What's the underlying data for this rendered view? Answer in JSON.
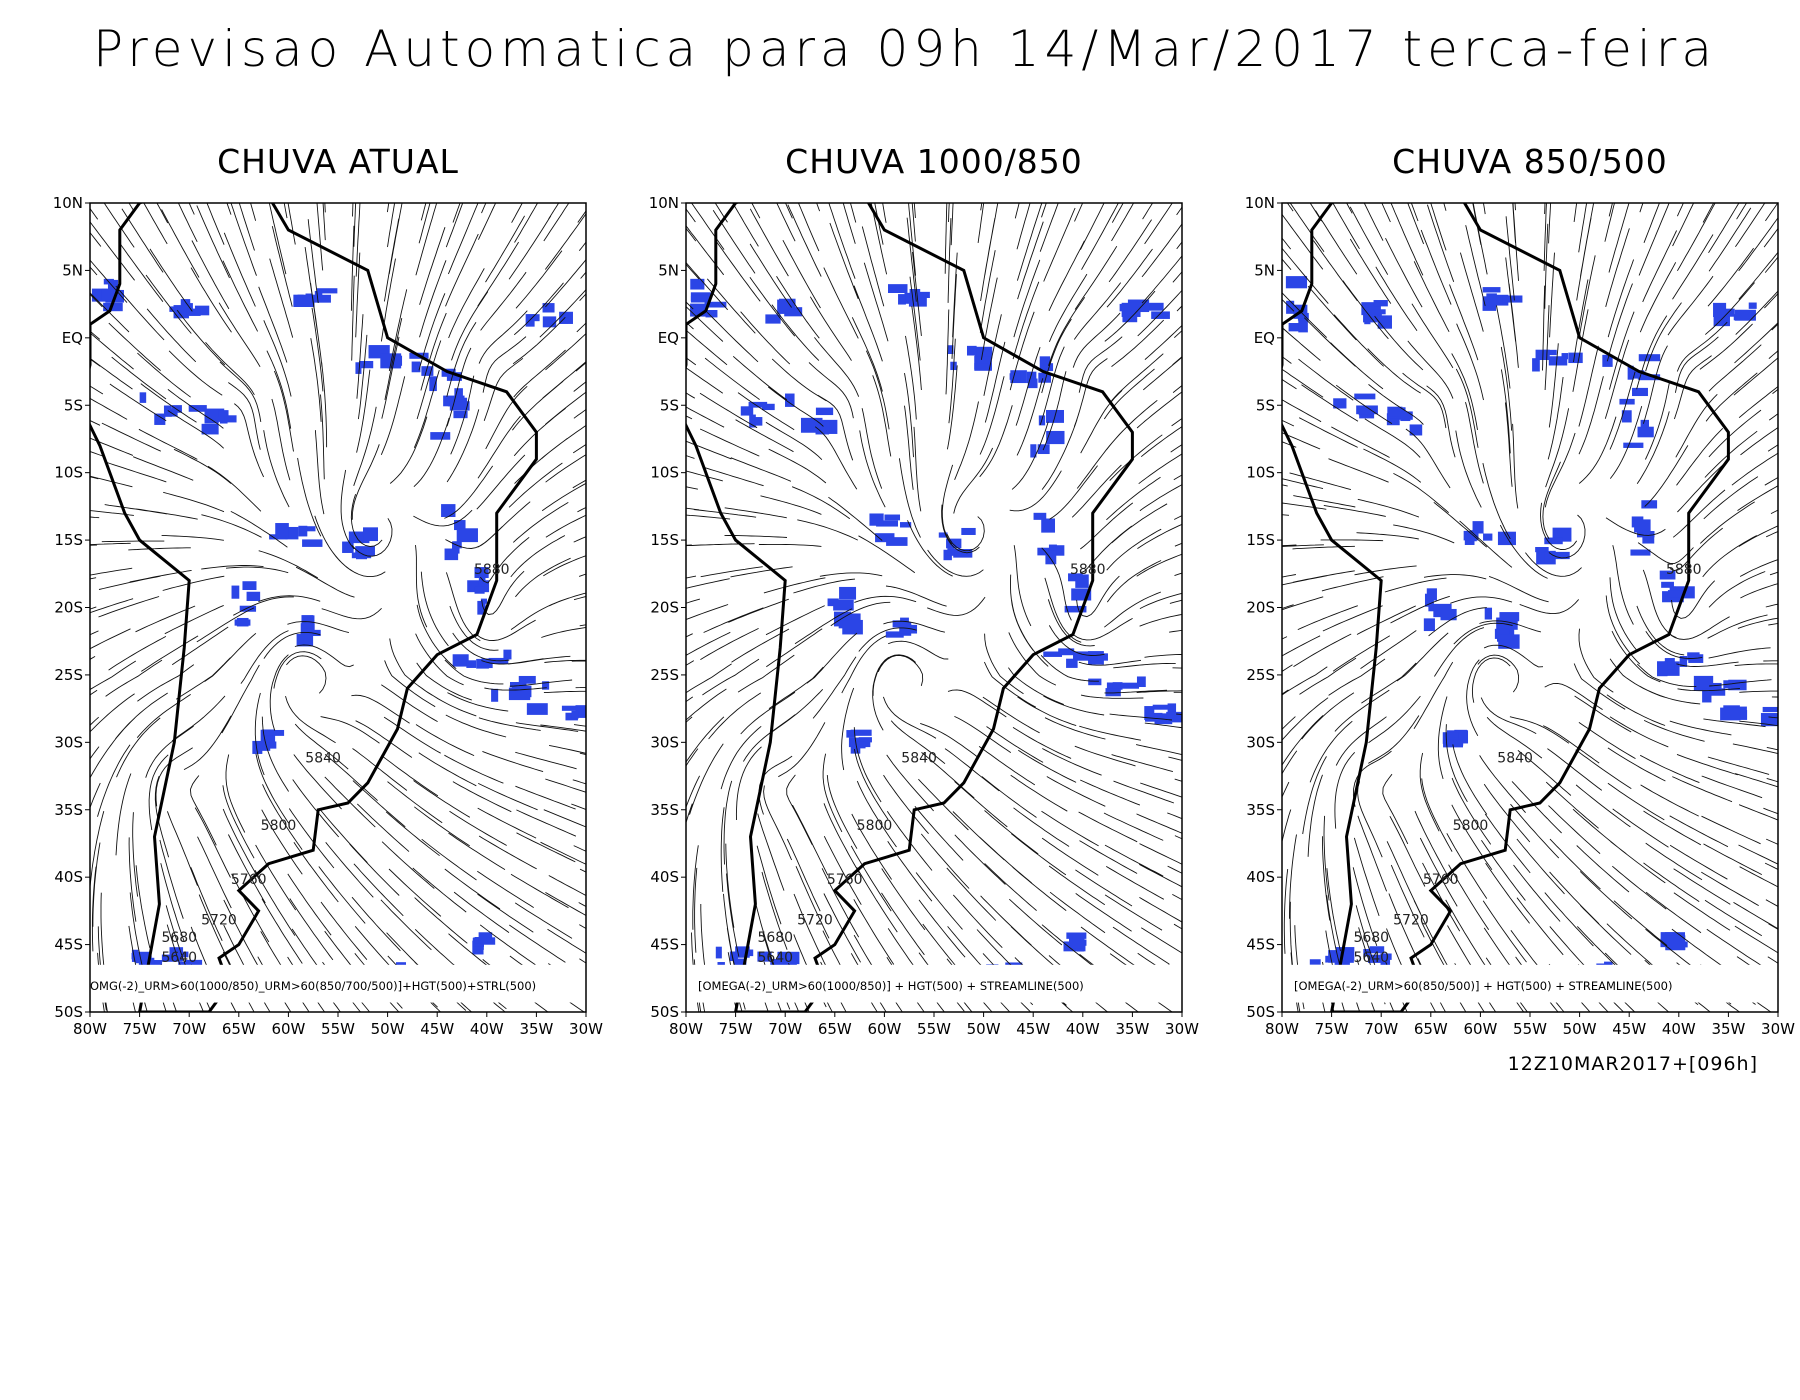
{
  "title": "Previsao Automatica para 09h 14/Mar/2017 terca-feira",
  "panels": [
    {
      "title": "CHUVA ATUAL",
      "legend": "OMG(-2)_URM>60(1000/850)_URM>60(850/700/500)]+HGT(500)+STRL(500)",
      "lat_labels": [
        "10N",
        "5N",
        "EQ",
        "5S",
        "10S",
        "15S",
        "20S",
        "25S",
        "30S",
        "35S",
        "40S",
        "45S",
        "50S"
      ],
      "lon_labels": [
        "80W",
        "75W",
        "70W",
        "65W",
        "60W",
        "55W",
        "50W",
        "45W",
        "40W",
        "35W",
        "30W"
      ],
      "contour_labels": [
        "5880",
        "5840",
        "5800",
        "5760",
        "5720",
        "5680",
        "5640"
      ]
    },
    {
      "title": "CHUVA 1000/850",
      "legend": "[OMEGA(-2)_URM>60(1000/850)] + HGT(500) + STREAMLINE(500)",
      "lat_labels": [
        "10N",
        "5N",
        "EQ",
        "5S",
        "10S",
        "15S",
        "20S",
        "25S",
        "30S",
        "35S",
        "40S",
        "45S",
        "50S"
      ],
      "lon_labels": [
        "80W",
        "75W",
        "70W",
        "65W",
        "60W",
        "55W",
        "50W",
        "45W",
        "40W",
        "35W",
        "30W"
      ],
      "contour_labels": [
        "5880",
        "5840",
        "5800",
        "5760",
        "5720",
        "5680",
        "5640"
      ]
    },
    {
      "title": "CHUVA 850/500",
      "legend": "[OMEGA(-2)_URM>60(850/500)] + HGT(500) + STREAMLINE(500)",
      "lat_labels": [
        "10N",
        "5N",
        "EQ",
        "5S",
        "10S",
        "15S",
        "20S",
        "25S",
        "30S",
        "35S",
        "40S",
        "45S",
        "50S"
      ],
      "lon_labels": [
        "80W",
        "75W",
        "70W",
        "65W",
        "60W",
        "55W",
        "50W",
        "45W",
        "40W",
        "35W",
        "30W"
      ],
      "contour_labels": [
        "5880",
        "5840",
        "5800",
        "5760",
        "5720",
        "5680",
        "5640"
      ]
    }
  ],
  "footer": "12Z10MAR2017+[096h]"
}
